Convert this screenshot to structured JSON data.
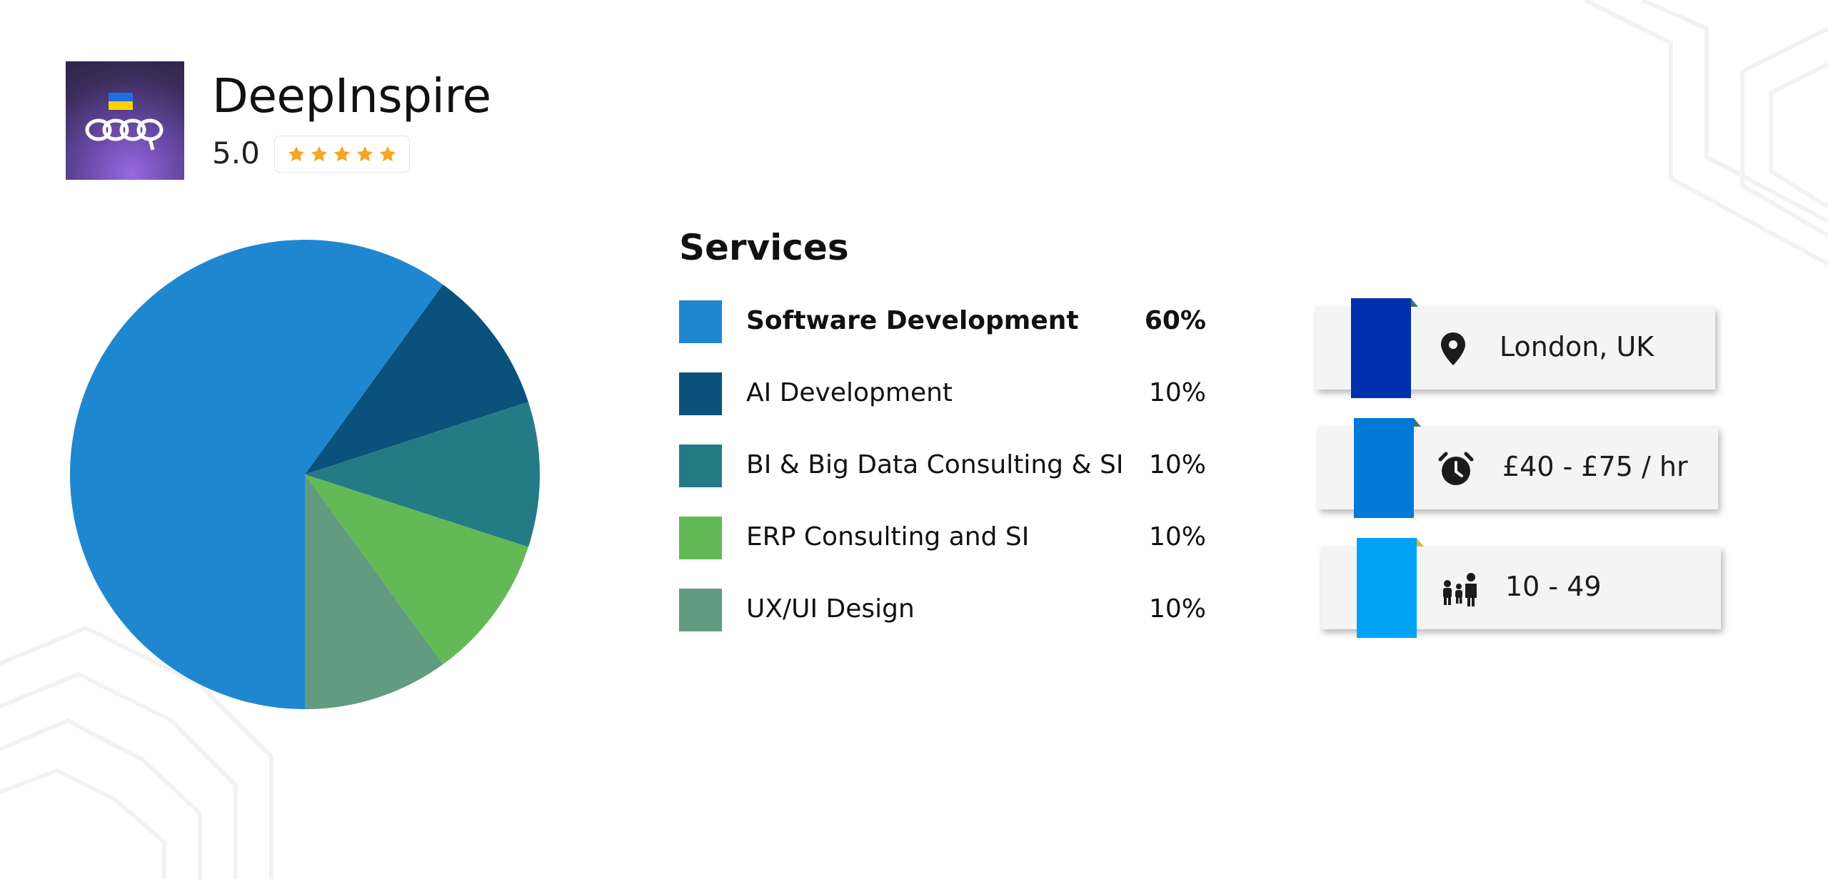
{
  "company": {
    "name": "DeepInspire",
    "rating": "5.0",
    "stars": 5
  },
  "services_title": "Services",
  "chart_data": {
    "type": "pie",
    "title": "Services",
    "slices": [
      {
        "label": "Software Development",
        "value": 60,
        "pct_label": "60%",
        "color": "#1f87d0",
        "bold": true
      },
      {
        "label": "AI Development",
        "value": 10,
        "pct_label": "10%",
        "color": "#0a527c",
        "bold": false
      },
      {
        "label": "BI & Big Data Consulting & SI",
        "value": 10,
        "pct_label": "10%",
        "color": "#257b85",
        "bold": false
      },
      {
        "label": "ERP Consulting and SI",
        "value": 10,
        "pct_label": "10%",
        "color": "#63b956",
        "bold": false
      },
      {
        "label": "UX/UI Design",
        "value": 10,
        "pct_label": "10%",
        "color": "#619b80",
        "bold": false
      }
    ]
  },
  "info_cards": [
    {
      "icon": "location-pin-icon",
      "text": "London, UK",
      "ribbon_color": "#0030ae"
    },
    {
      "icon": "alarm-clock-icon",
      "text": "£40 - £75 / hr",
      "ribbon_color": "#0079d7"
    },
    {
      "icon": "team-people-icon",
      "text": "10 - 49",
      "ribbon_color": "#00a2f6"
    }
  ],
  "colors": {
    "star": "#f5a623",
    "card_bg": "#f4f4f4",
    "ribbon_fold": "#4caf50"
  }
}
